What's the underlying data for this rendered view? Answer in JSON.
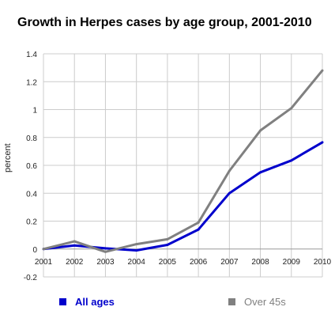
{
  "chart_data": {
    "type": "line",
    "title": "Growth in Herpes cases by age group, 2001-2010",
    "xlabel": "",
    "ylabel": "percent",
    "x": [
      "2001",
      "2002",
      "2003",
      "2004",
      "2005",
      "2006",
      "2007",
      "2008",
      "2009",
      "2010"
    ],
    "ylim": [
      -0.2,
      1.4
    ],
    "yticks": [
      "1.4",
      "1.2",
      "1",
      "0.8",
      "0.6",
      "0.4",
      "0.2",
      "0",
      "-0.2"
    ],
    "yticks_values": [
      1.4,
      1.2,
      1.0,
      0.8,
      0.6,
      0.4,
      0.2,
      0.0,
      -0.2
    ],
    "grid": true,
    "legend_position": "bottom",
    "series": [
      {
        "name": "All ages",
        "color": "#0000cc",
        "values": [
          0.0,
          0.025,
          0.005,
          -0.01,
          0.03,
          0.14,
          0.4,
          0.55,
          0.635,
          0.765
        ]
      },
      {
        "name": "Over 45s",
        "color": "#808080",
        "values": [
          0.0,
          0.055,
          -0.02,
          0.035,
          0.07,
          0.19,
          0.56,
          0.85,
          1.01,
          1.28
        ]
      }
    ]
  }
}
